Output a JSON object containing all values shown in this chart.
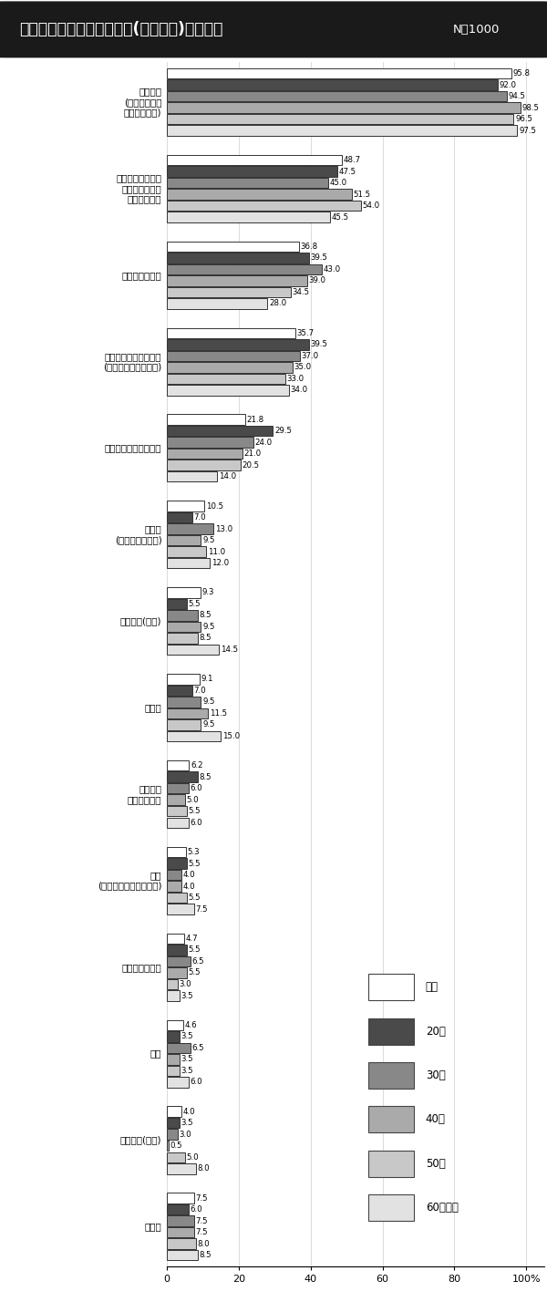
{
  "title": "利用している食品の購入先(購入店舗)について",
  "n_label": "N＝1000",
  "categories": [
    "スーパー\n(総合スーパー\n食品スーパー)",
    "業務用スーパーや\nコストコなどの\n大容量販売店",
    "ドラッグストア",
    "ディスカウントストア\n(食品の低価格販売店)",
    "コンビニエンスストア",
    "専門店\n(魚屋、肉屋など)",
    "個人宅配(生協)",
    "百貨店",
    "道の駅・\n農産物直売所",
    "通販\n(ネットスーパーを除く)",
    "ネットスーパー",
    "市場",
    "共同購入(生協)",
    "その他"
  ],
  "series_order": [
    "全体",
    "20代",
    "30代",
    "40代",
    "50代",
    "60代以上"
  ],
  "series": {
    "全体": [
      95.8,
      48.7,
      36.8,
      35.7,
      21.8,
      10.5,
      9.3,
      9.1,
      6.2,
      5.3,
      4.7,
      4.6,
      4.0,
      7.5
    ],
    "20代": [
      92.0,
      47.5,
      39.5,
      39.5,
      29.5,
      7.0,
      5.5,
      7.0,
      8.5,
      5.5,
      5.5,
      3.5,
      3.5,
      6.0
    ],
    "30代": [
      94.5,
      45.0,
      43.0,
      37.0,
      24.0,
      13.0,
      8.5,
      9.5,
      6.0,
      4.0,
      6.5,
      6.5,
      3.0,
      7.5
    ],
    "40代": [
      98.5,
      51.5,
      39.0,
      35.0,
      21.0,
      9.5,
      9.5,
      11.5,
      5.0,
      4.0,
      5.5,
      3.5,
      0.5,
      7.5
    ],
    "50代": [
      96.5,
      54.0,
      34.5,
      33.0,
      20.5,
      11.0,
      8.5,
      9.5,
      5.5,
      5.5,
      3.0,
      3.5,
      5.0,
      8.0
    ],
    "60代以上": [
      97.5,
      45.5,
      28.0,
      34.0,
      14.0,
      12.0,
      14.5,
      15.0,
      6.0,
      7.5,
      3.5,
      6.0,
      8.0,
      8.5
    ]
  },
  "colors": {
    "全体": "#ffffff",
    "20代": "#4a4a4a",
    "30代": "#888888",
    "40代": "#aaaaaa",
    "50代": "#c8c8c8",
    "60代以上": "#e2e2e2"
  },
  "xticks": [
    0,
    20,
    40,
    60,
    80,
    100
  ],
  "xticklabels": [
    "0",
    "20",
    "40",
    "60",
    "80",
    "100%"
  ],
  "title_bg_color": "#1a1a1a",
  "title_text_color": "#ffffff"
}
